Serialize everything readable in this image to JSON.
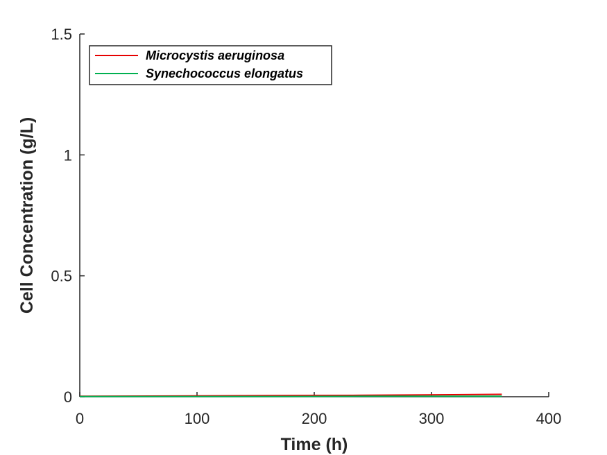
{
  "chart_data": {
    "type": "line",
    "title": "",
    "xlabel": "Time (h)",
    "ylabel": "Cell Concentration (g/L)",
    "xlim": [
      0,
      400
    ],
    "ylim": [
      0,
      1.5
    ],
    "x_ticks": [
      0,
      100,
      200,
      300,
      400
    ],
    "x_tick_labels": [
      "0",
      "100",
      "200",
      "300",
      "400"
    ],
    "y_ticks": [
      0,
      0.5,
      1,
      1.5
    ],
    "y_tick_labels": [
      "0",
      "0.5",
      "1",
      "1.5"
    ],
    "grid": false,
    "legend_position": "top-left",
    "series": [
      {
        "name": "Microcystis aeruginosa",
        "color": "#e60000",
        "x": [
          0,
          60,
          120,
          180,
          240,
          300,
          360
        ],
        "y": [
          0.002,
          0.003,
          0.004,
          0.005,
          0.006,
          0.008,
          0.01
        ]
      },
      {
        "name": "Synechococcus elongatus",
        "color": "#00b050",
        "x": [
          0,
          60,
          120,
          180,
          240,
          300,
          360
        ],
        "y": [
          0.001,
          0.001,
          0.001,
          0.001,
          0.002,
          0.002,
          0.002
        ]
      }
    ]
  }
}
